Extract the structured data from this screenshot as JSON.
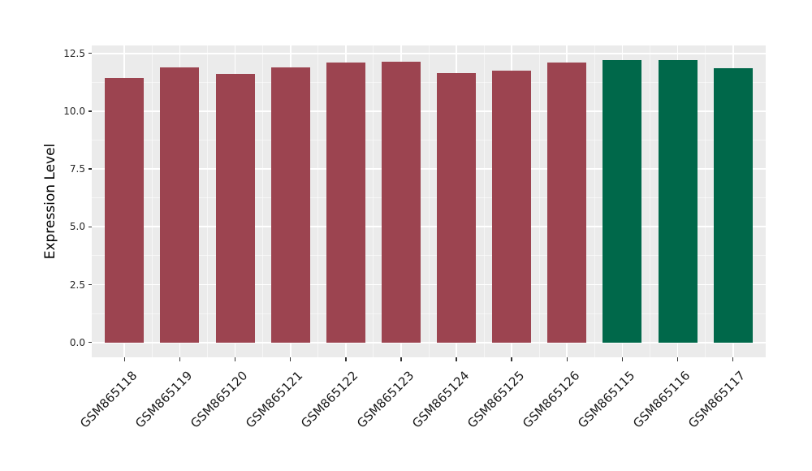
{
  "chart_data": {
    "type": "bar",
    "title": "",
    "ylabel": "Expression Level",
    "xlabel": "",
    "categories": [
      "GSM865118",
      "GSM865119",
      "GSM865120",
      "GSM865121",
      "GSM865122",
      "GSM865123",
      "GSM865124",
      "GSM865125",
      "GSM865126",
      "GSM865115",
      "GSM865116",
      "GSM865117"
    ],
    "values": [
      11.45,
      11.9,
      11.6,
      11.9,
      12.1,
      12.15,
      11.65,
      11.75,
      12.1,
      12.2,
      12.2,
      11.85
    ],
    "bar_colors": [
      "#9C4450",
      "#9C4450",
      "#9C4450",
      "#9C4450",
      "#9C4450",
      "#9C4450",
      "#9C4450",
      "#9C4450",
      "#9C4450",
      "#00684A",
      "#00684A",
      "#00684A"
    ],
    "group_colors": {
      "maroon": "#9C4450",
      "green": "#00684A"
    },
    "yticks": [
      0,
      2.5,
      5,
      7.5,
      10,
      12.5
    ],
    "ytick_labels": [
      "0.0",
      "2.5",
      "5.0",
      "7.5",
      "10.0",
      "12.5"
    ],
    "ylim": [
      0,
      12.5
    ],
    "grid": true,
    "legend_position": "none",
    "panel_background": "#EBEBEB",
    "grid_color": "#FFFFFF",
    "tick_color": "#333333",
    "text_color": "#262626"
  }
}
